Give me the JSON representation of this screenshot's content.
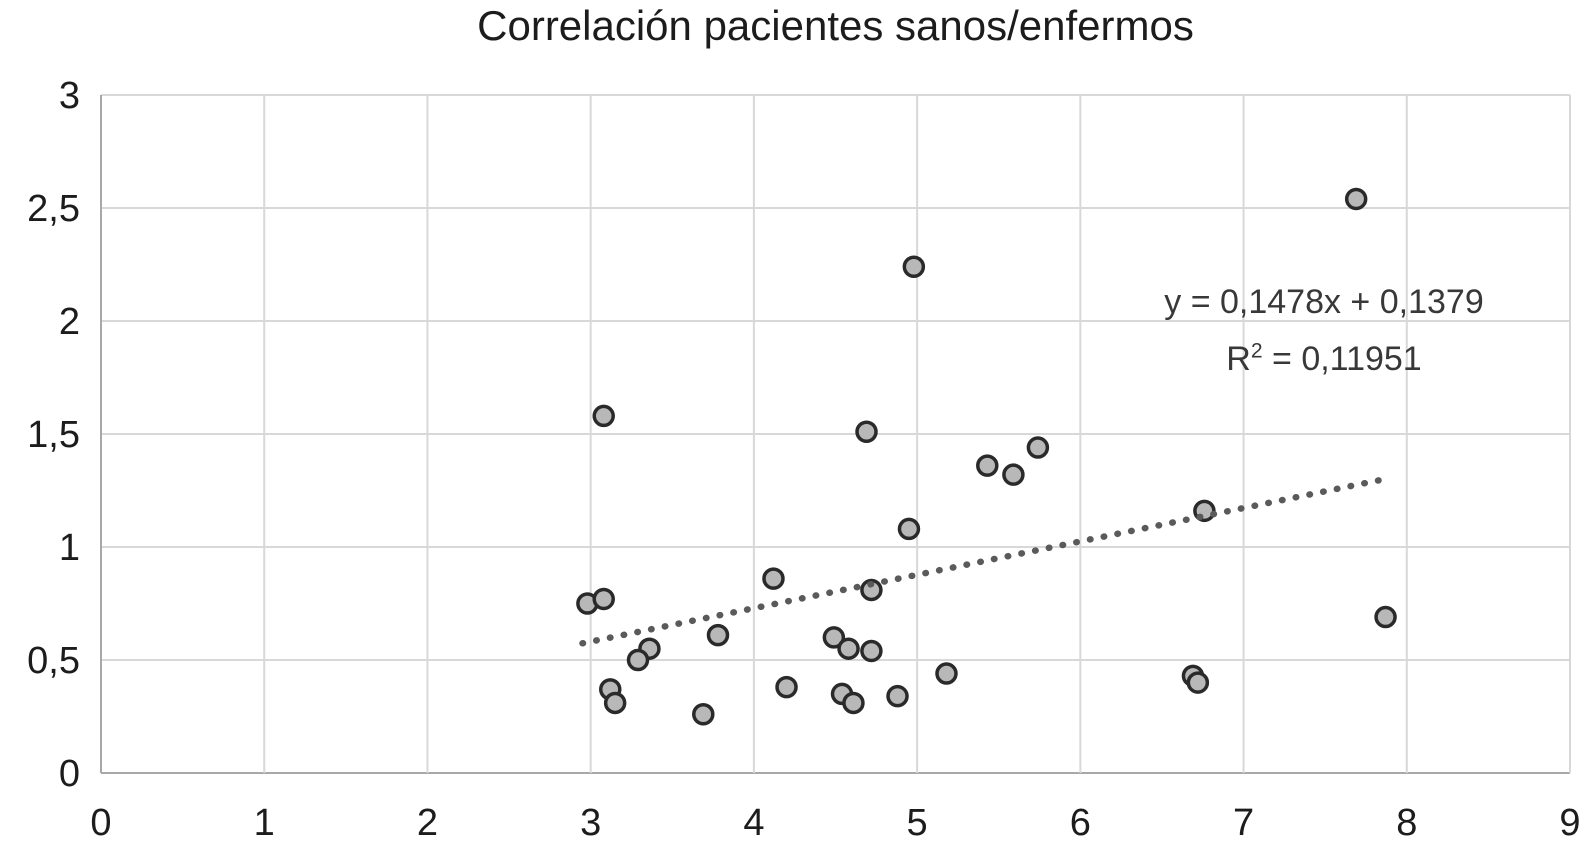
{
  "chart_data": {
    "type": "scatter",
    "title": "Correlación pacientes sanos/enfermos",
    "xlabel": "",
    "ylabel": "",
    "xlim": [
      0,
      9
    ],
    "ylim": [
      0,
      3
    ],
    "grid": true,
    "legend": "none",
    "x_ticks": [
      {
        "v": 0,
        "label": "0"
      },
      {
        "v": 1,
        "label": "1"
      },
      {
        "v": 2,
        "label": "2"
      },
      {
        "v": 3,
        "label": "3"
      },
      {
        "v": 4,
        "label": "4"
      },
      {
        "v": 5,
        "label": "5"
      },
      {
        "v": 6,
        "label": "6"
      },
      {
        "v": 7,
        "label": "7"
      },
      {
        "v": 8,
        "label": "8"
      },
      {
        "v": 9,
        "label": "9"
      }
    ],
    "y_ticks": [
      {
        "v": 0,
        "label": "0"
      },
      {
        "v": 0.5,
        "label": "0,5"
      },
      {
        "v": 1,
        "label": "1"
      },
      {
        "v": 1.5,
        "label": "1,5"
      },
      {
        "v": 2,
        "label": "2"
      },
      {
        "v": 2.5,
        "label": "2,5"
      },
      {
        "v": 3,
        "label": "3"
      }
    ],
    "points": [
      [
        3.08,
        1.58
      ],
      [
        4.98,
        2.24
      ],
      [
        7.69,
        2.54
      ],
      [
        4.69,
        1.51
      ],
      [
        5.43,
        1.36
      ],
      [
        5.59,
        1.32
      ],
      [
        5.74,
        1.44
      ],
      [
        4.95,
        1.08
      ],
      [
        6.76,
        1.16
      ],
      [
        7.87,
        0.69
      ],
      [
        4.12,
        0.86
      ],
      [
        4.72,
        0.81
      ],
      [
        2.98,
        0.75
      ],
      [
        3.08,
        0.77
      ],
      [
        3.78,
        0.61
      ],
      [
        4.49,
        0.6
      ],
      [
        4.58,
        0.55
      ],
      [
        4.72,
        0.54
      ],
      [
        3.36,
        0.55
      ],
      [
        3.29,
        0.5
      ],
      [
        5.18,
        0.44
      ],
      [
        6.69,
        0.43
      ],
      [
        6.72,
        0.4
      ],
      [
        3.12,
        0.37
      ],
      [
        3.15,
        0.31
      ],
      [
        4.2,
        0.38
      ],
      [
        4.54,
        0.35
      ],
      [
        4.61,
        0.31
      ],
      [
        4.88,
        0.34
      ],
      [
        3.69,
        0.26
      ]
    ],
    "trendline": {
      "style": "dotted",
      "slope": 0.1478,
      "intercept": 0.1379,
      "x_start": 2.95,
      "x_end": 7.86
    },
    "equation": {
      "line1": "y = 0,1478x + 0,1379",
      "r_base": "R",
      "r_exp": "2",
      "r_rest": " = 0,11951"
    },
    "colors": {
      "point_fill": "#b8b8b8",
      "point_stroke": "#2a2a2a",
      "grid": "#d8d8d8",
      "axis": "#a8a8a8",
      "trend": "#5a5a5a",
      "text": "#1c1c1c"
    }
  }
}
